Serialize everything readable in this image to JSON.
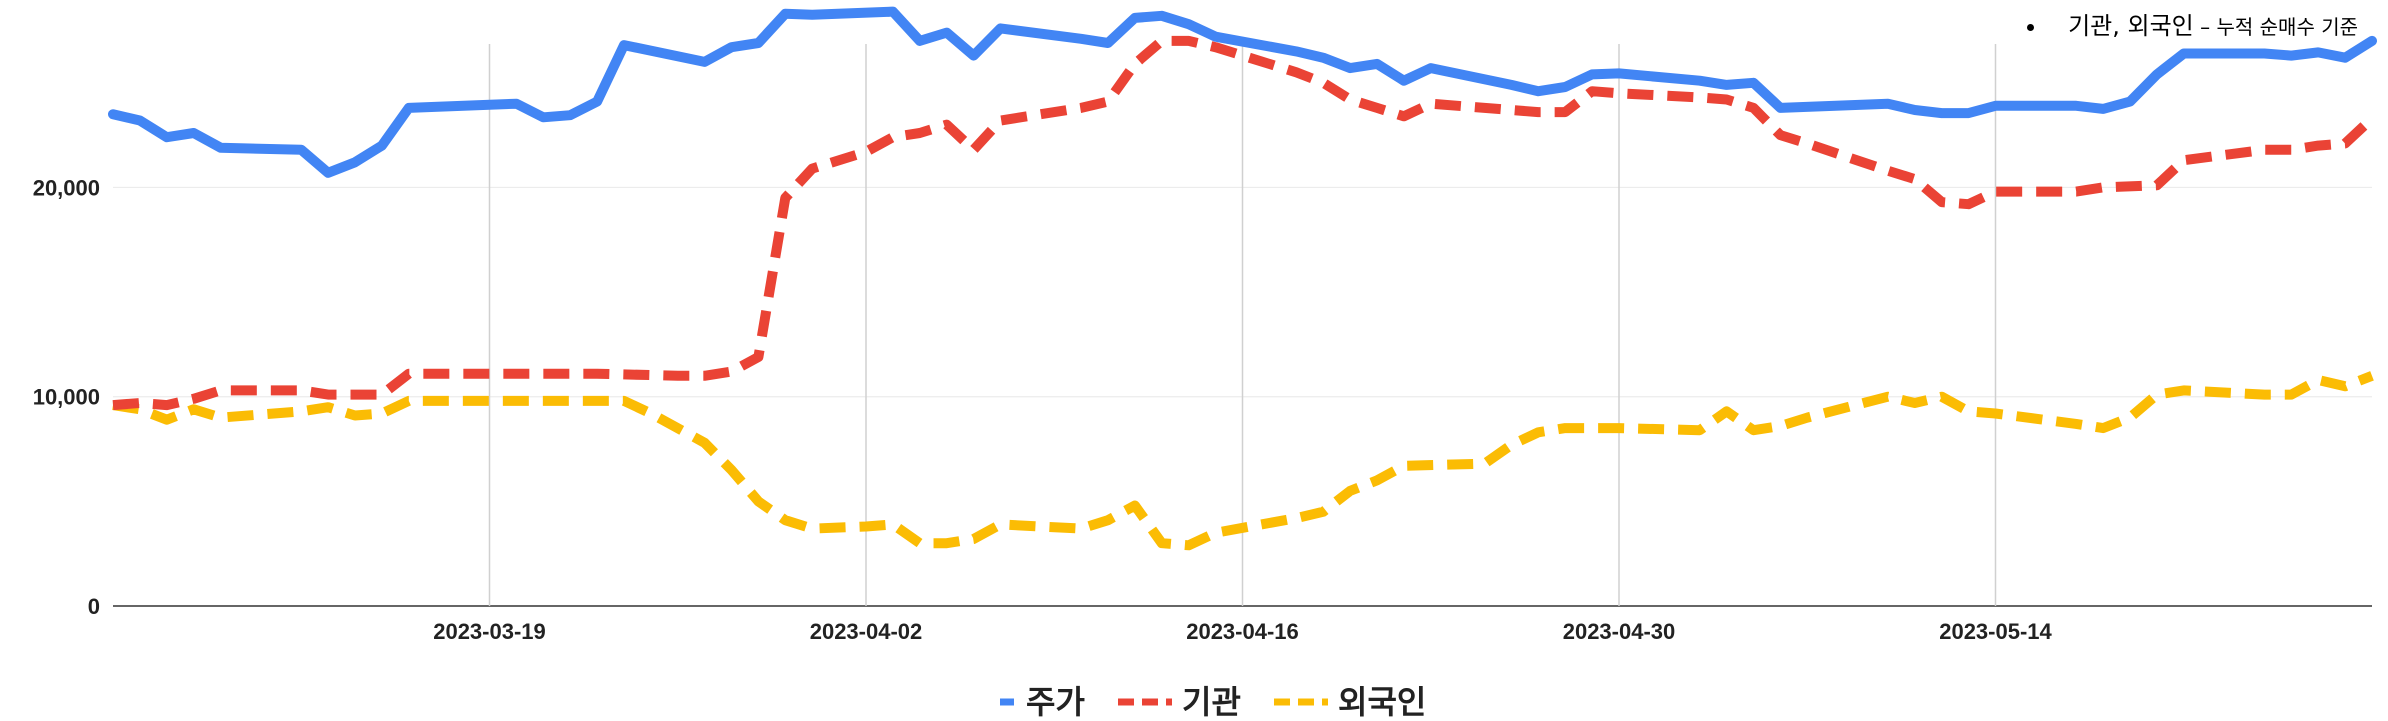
{
  "annotation": {
    "main": "기관, 외국인",
    "sub": " – 누적 순매수 기준"
  },
  "chart_data": {
    "type": "line",
    "x_start": "2023-03-05",
    "x_end": "2023-05-28",
    "ylim": [
      0,
      28000
    ],
    "y_ticks": [
      0,
      10000,
      20000
    ],
    "y_tick_labels": [
      "0",
      "10,000",
      "20,000"
    ],
    "x_ticks": [
      "2023-03-19",
      "2023-04-02",
      "2023-04-16",
      "2023-04-30",
      "2023-05-14"
    ],
    "grid": true,
    "legend_position": "bottom",
    "series": [
      {
        "name": "주가",
        "color": "#4285F4",
        "dash": "solid",
        "points": [
          [
            "2023-03-05",
            23500
          ],
          [
            "2023-03-06",
            23200
          ],
          [
            "2023-03-07",
            22400
          ],
          [
            "2023-03-08",
            22600
          ],
          [
            "2023-03-09",
            21900
          ],
          [
            "2023-03-12",
            21800
          ],
          [
            "2023-03-13",
            20700
          ],
          [
            "2023-03-14",
            21200
          ],
          [
            "2023-03-15",
            22000
          ],
          [
            "2023-03-16",
            23800
          ],
          [
            "2023-03-20",
            24000
          ],
          [
            "2023-03-21",
            23350
          ],
          [
            "2023-03-22",
            23450
          ],
          [
            "2023-03-23",
            24100
          ],
          [
            "2023-03-24",
            26800
          ],
          [
            "2023-03-27",
            26000
          ],
          [
            "2023-03-28",
            26700
          ],
          [
            "2023-03-29",
            26900
          ],
          [
            "2023-03-30",
            28300
          ],
          [
            "2023-03-31",
            28250
          ],
          [
            "2023-04-03",
            28400
          ],
          [
            "2023-04-04",
            27000
          ],
          [
            "2023-04-05",
            27400
          ],
          [
            "2023-04-06",
            26300
          ],
          [
            "2023-04-07",
            27600
          ],
          [
            "2023-04-10",
            27100
          ],
          [
            "2023-04-11",
            26900
          ],
          [
            "2023-04-12",
            28100
          ],
          [
            "2023-04-13",
            28200
          ],
          [
            "2023-04-14",
            27800
          ],
          [
            "2023-04-15",
            27200
          ],
          [
            "2023-04-18",
            26500
          ],
          [
            "2023-04-19",
            26200
          ],
          [
            "2023-04-20",
            25700
          ],
          [
            "2023-04-21",
            25900
          ],
          [
            "2023-04-22",
            25100
          ],
          [
            "2023-04-23",
            25700
          ],
          [
            "2023-04-26",
            24900
          ],
          [
            "2023-04-27",
            24600
          ],
          [
            "2023-04-28",
            24800
          ],
          [
            "2023-04-29",
            25400
          ],
          [
            "2023-04-30",
            25450
          ],
          [
            "2023-05-03",
            25100
          ],
          [
            "2023-05-04",
            24900
          ],
          [
            "2023-05-05",
            25000
          ],
          [
            "2023-05-06",
            23800
          ],
          [
            "2023-05-10",
            24000
          ],
          [
            "2023-05-11",
            23700
          ],
          [
            "2023-05-12",
            23550
          ],
          [
            "2023-05-13",
            23550
          ],
          [
            "2023-05-14",
            23900
          ],
          [
            "2023-05-17",
            23900
          ],
          [
            "2023-05-18",
            23750
          ],
          [
            "2023-05-19",
            24100
          ],
          [
            "2023-05-20",
            25400
          ],
          [
            "2023-05-21",
            26400
          ],
          [
            "2023-05-24",
            26400
          ],
          [
            "2023-05-25",
            26300
          ],
          [
            "2023-05-26",
            26450
          ],
          [
            "2023-05-27",
            26200
          ],
          [
            "2023-05-28",
            27000
          ]
        ]
      },
      {
        "name": "기관",
        "color": "#EA4335",
        "dash": "dashed",
        "points": [
          [
            "2023-03-05",
            9600
          ],
          [
            "2023-03-06",
            9700
          ],
          [
            "2023-03-07",
            9600
          ],
          [
            "2023-03-08",
            9900
          ],
          [
            "2023-03-09",
            10300
          ],
          [
            "2023-03-12",
            10300
          ],
          [
            "2023-03-13",
            10100
          ],
          [
            "2023-03-14",
            10100
          ],
          [
            "2023-03-15",
            10100
          ],
          [
            "2023-03-16",
            11100
          ],
          [
            "2023-03-20",
            11100
          ],
          [
            "2023-03-23",
            11100
          ],
          [
            "2023-03-26",
            11000
          ],
          [
            "2023-03-27",
            11000
          ],
          [
            "2023-03-28",
            11200
          ],
          [
            "2023-03-29",
            11900
          ],
          [
            "2023-03-30",
            19500
          ],
          [
            "2023-03-31",
            20900
          ],
          [
            "2023-04-02",
            21700
          ],
          [
            "2023-04-03",
            22400
          ],
          [
            "2023-04-04",
            22600
          ],
          [
            "2023-04-05",
            23000
          ],
          [
            "2023-04-06",
            21800
          ],
          [
            "2023-04-07",
            23200
          ],
          [
            "2023-04-10",
            23800
          ],
          [
            "2023-04-11",
            24100
          ],
          [
            "2023-04-12",
            25900
          ],
          [
            "2023-04-13",
            27000
          ],
          [
            "2023-04-14",
            27000
          ],
          [
            "2023-04-15",
            26700
          ],
          [
            "2023-04-18",
            25500
          ],
          [
            "2023-04-19",
            25000
          ],
          [
            "2023-04-20",
            24200
          ],
          [
            "2023-04-21",
            23800
          ],
          [
            "2023-04-22",
            23400
          ],
          [
            "2023-04-23",
            24000
          ],
          [
            "2023-04-27",
            23600
          ],
          [
            "2023-04-28",
            23600
          ],
          [
            "2023-04-29",
            24600
          ],
          [
            "2023-04-30",
            24500
          ],
          [
            "2023-05-03",
            24300
          ],
          [
            "2023-05-04",
            24200
          ],
          [
            "2023-05-05",
            23800
          ],
          [
            "2023-05-06",
            22500
          ],
          [
            "2023-05-07",
            22100
          ],
          [
            "2023-05-10",
            20800
          ],
          [
            "2023-05-11",
            20400
          ],
          [
            "2023-05-12",
            19300
          ],
          [
            "2023-05-13",
            19200
          ],
          [
            "2023-05-14",
            19800
          ],
          [
            "2023-05-17",
            19800
          ],
          [
            "2023-05-18",
            20000
          ],
          [
            "2023-05-20",
            20100
          ],
          [
            "2023-05-21",
            21300
          ],
          [
            "2023-05-24",
            21800
          ],
          [
            "2023-05-25",
            21800
          ],
          [
            "2023-05-26",
            22000
          ],
          [
            "2023-05-27",
            22100
          ],
          [
            "2023-05-28",
            23300
          ]
        ]
      },
      {
        "name": "외국인",
        "color": "#FBBC04",
        "dash": "dashed",
        "points": [
          [
            "2023-03-05",
            9600
          ],
          [
            "2023-03-06",
            9400
          ],
          [
            "2023-03-07",
            8900
          ],
          [
            "2023-03-08",
            9400
          ],
          [
            "2023-03-09",
            9000
          ],
          [
            "2023-03-12",
            9300
          ],
          [
            "2023-03-13",
            9500
          ],
          [
            "2023-03-14",
            9100
          ],
          [
            "2023-03-15",
            9200
          ],
          [
            "2023-03-16",
            9800
          ],
          [
            "2023-03-20",
            9800
          ],
          [
            "2023-03-23",
            9800
          ],
          [
            "2023-03-24",
            9800
          ],
          [
            "2023-03-25",
            9200
          ],
          [
            "2023-03-27",
            7800
          ],
          [
            "2023-03-28",
            6500
          ],
          [
            "2023-03-29",
            5000
          ],
          [
            "2023-03-30",
            4100
          ],
          [
            "2023-03-31",
            3700
          ],
          [
            "2023-04-02",
            3800
          ],
          [
            "2023-04-03",
            3900
          ],
          [
            "2023-04-04",
            3000
          ],
          [
            "2023-04-05",
            3000
          ],
          [
            "2023-04-06",
            3200
          ],
          [
            "2023-04-07",
            3900
          ],
          [
            "2023-04-10",
            3700
          ],
          [
            "2023-04-11",
            4100
          ],
          [
            "2023-04-12",
            4800
          ],
          [
            "2023-04-13",
            3000
          ],
          [
            "2023-04-14",
            2900
          ],
          [
            "2023-04-15",
            3500
          ],
          [
            "2023-04-18",
            4200
          ],
          [
            "2023-04-19",
            4500
          ],
          [
            "2023-04-20",
            5500
          ],
          [
            "2023-04-21",
            6000
          ],
          [
            "2023-04-22",
            6700
          ],
          [
            "2023-04-25",
            6800
          ],
          [
            "2023-04-26",
            7700
          ],
          [
            "2023-04-27",
            8300
          ],
          [
            "2023-04-28",
            8500
          ],
          [
            "2023-04-30",
            8500
          ],
          [
            "2023-05-03",
            8400
          ],
          [
            "2023-05-04",
            9300
          ],
          [
            "2023-05-05",
            8400
          ],
          [
            "2023-05-06",
            8600
          ],
          [
            "2023-05-07",
            9000
          ],
          [
            "2023-05-10",
            10000
          ],
          [
            "2023-05-11",
            9700
          ],
          [
            "2023-05-12",
            10000
          ],
          [
            "2023-05-13",
            9300
          ],
          [
            "2023-05-14",
            9200
          ],
          [
            "2023-05-17",
            8700
          ],
          [
            "2023-05-18",
            8500
          ],
          [
            "2023-05-19",
            9000
          ],
          [
            "2023-05-20",
            10100
          ],
          [
            "2023-05-21",
            10300
          ],
          [
            "2023-05-24",
            10100
          ],
          [
            "2023-05-25",
            10100
          ],
          [
            "2023-05-26",
            10800
          ],
          [
            "2023-05-27",
            10500
          ],
          [
            "2023-05-28",
            11000
          ]
        ]
      }
    ]
  }
}
